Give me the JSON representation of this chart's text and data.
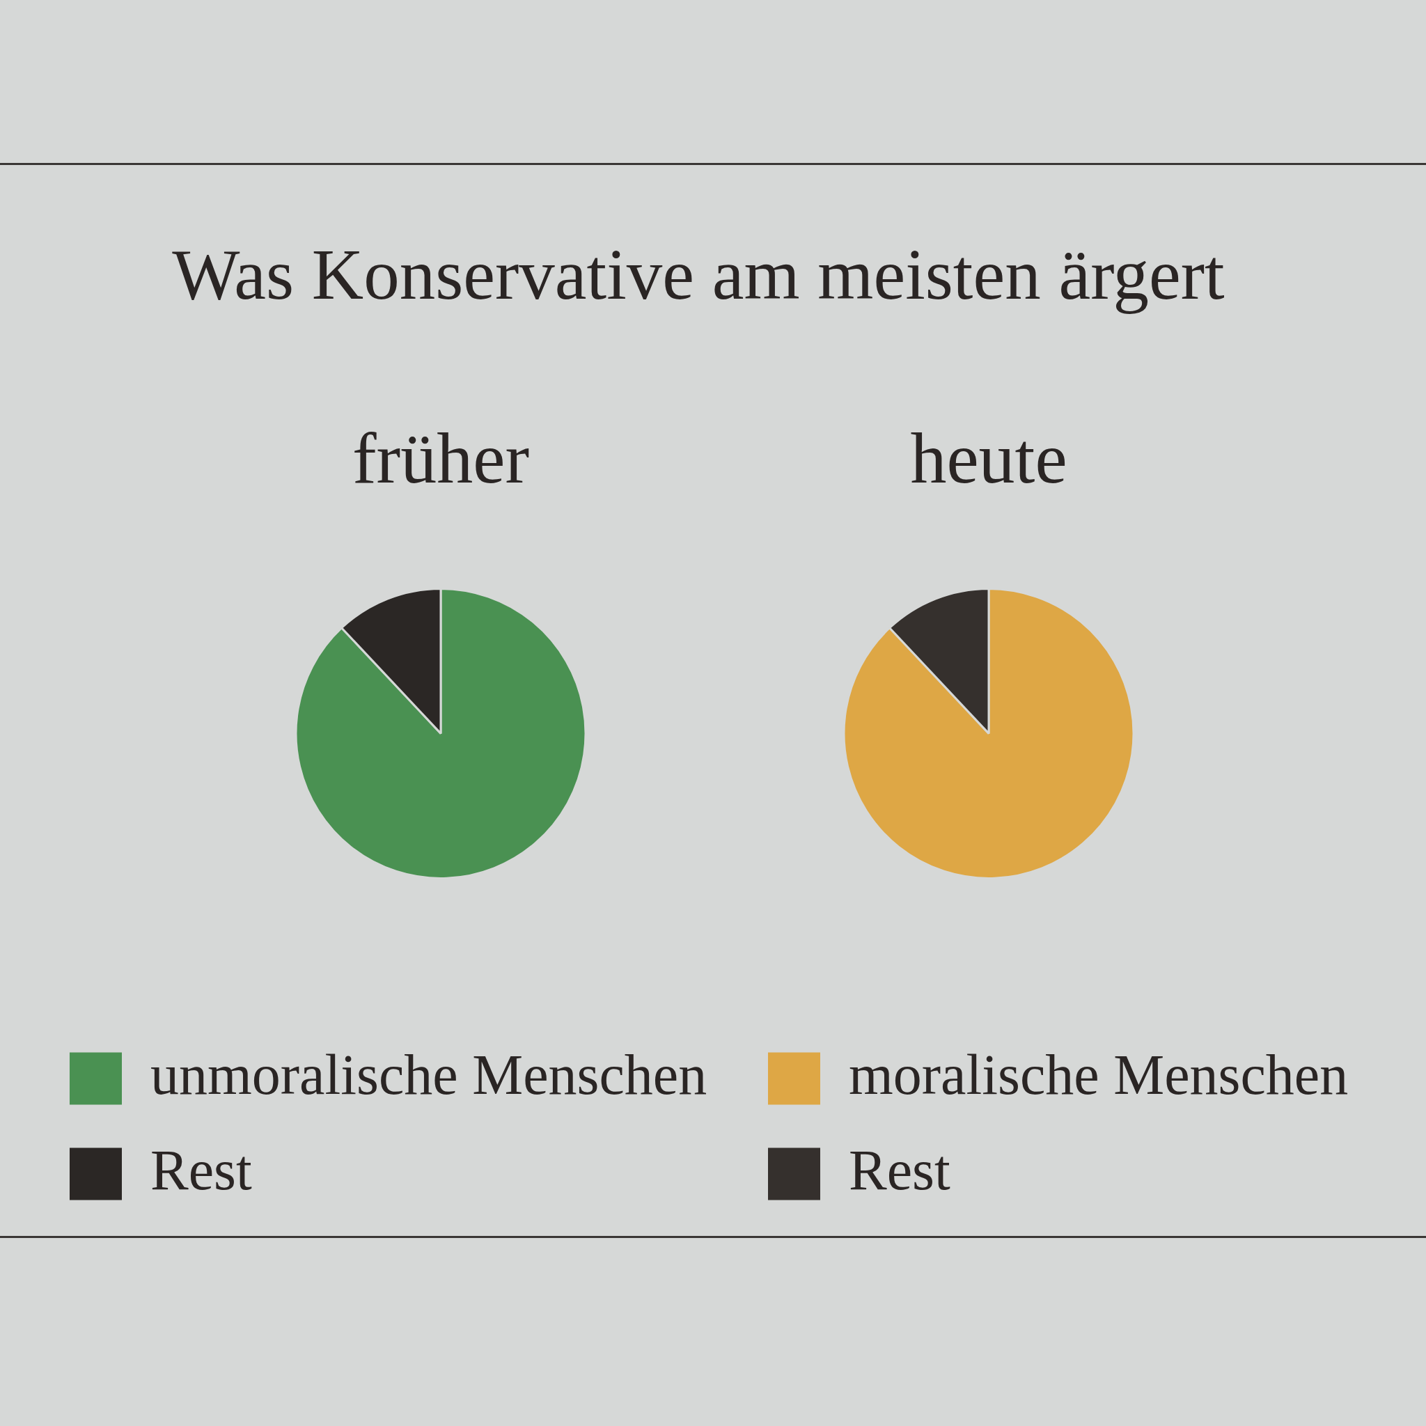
{
  "chart_data": [
    {
      "type": "other",
      "title": "Was Konservative am meisten ärgert"
    },
    {
      "type": "pie",
      "title": "früher",
      "categories": [
        "unmoralische Menschen",
        "Rest"
      ],
      "values": [
        88,
        12
      ],
      "colors": [
        "#4a9152",
        "#2b2725"
      ],
      "legend": "bottom"
    },
    {
      "type": "pie",
      "title": "heute",
      "categories": [
        "moralische Menschen",
        "Rest"
      ],
      "values": [
        88,
        12
      ],
      "colors": [
        "#dea745",
        "#35302d"
      ],
      "legend": "bottom"
    }
  ]
}
